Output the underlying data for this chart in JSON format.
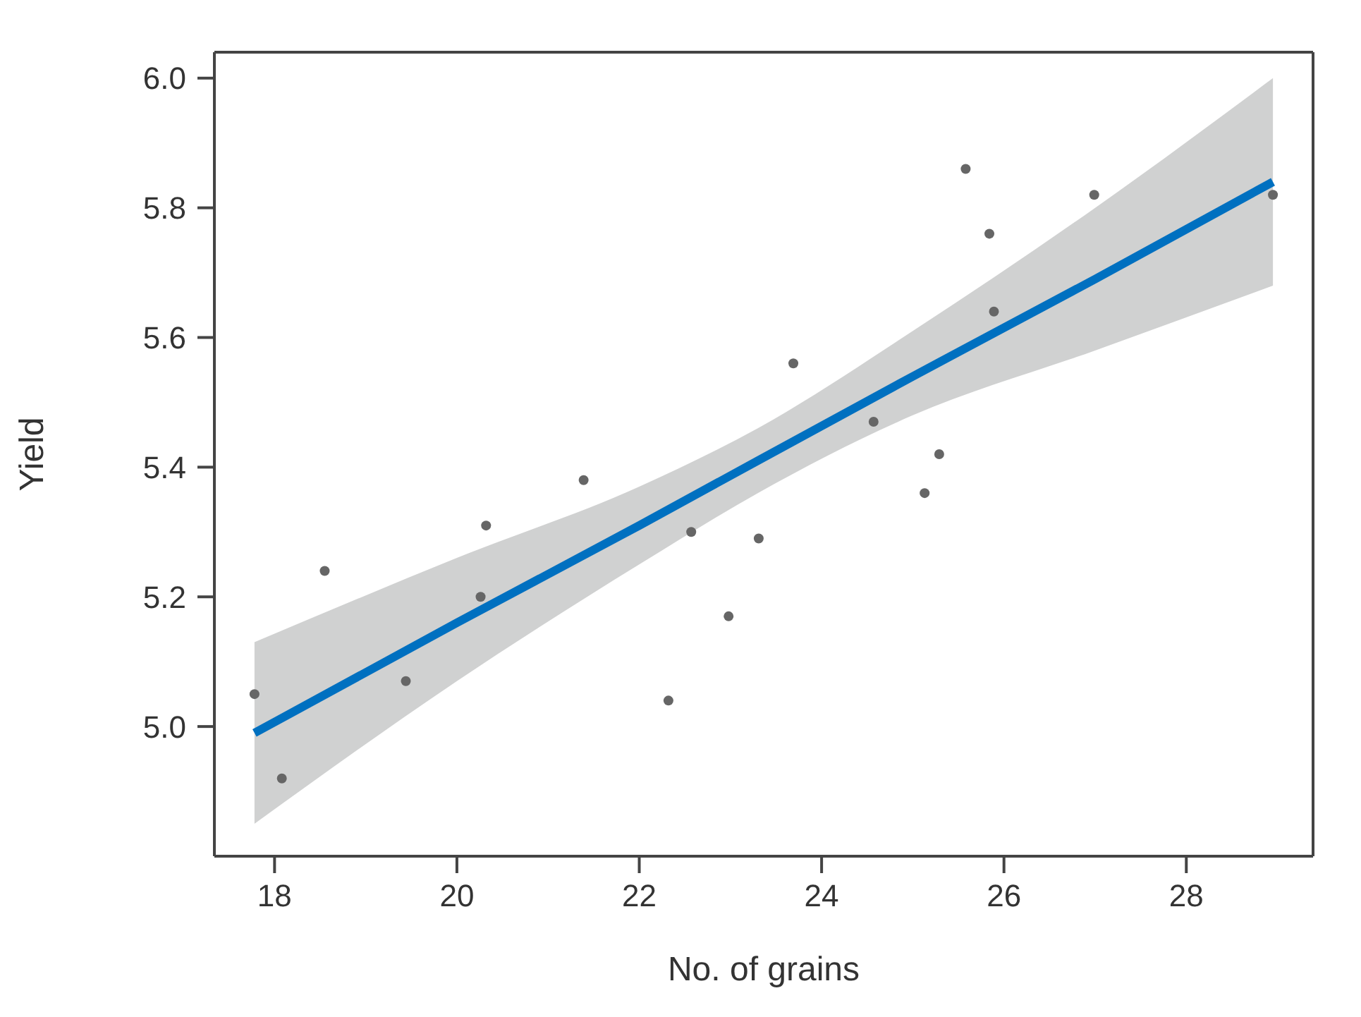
{
  "chart_data": {
    "type": "scatter",
    "xlabel": "No. of grains",
    "ylabel": "Yield",
    "xlim": [
      17.34,
      29.39
    ],
    "ylim": [
      4.8,
      6.04
    ],
    "xticks": [
      18,
      20,
      22,
      24,
      26,
      28
    ],
    "yticks": [
      {
        "value": 5,
        "label": "5.0"
      },
      5.2,
      5.4,
      5.6,
      5.8,
      {
        "value": 6,
        "label": "6.0"
      }
    ],
    "grid": false,
    "legend": false,
    "series": [
      {
        "marker": "circle",
        "color": "#666666",
        "x": [
          17.78,
          18.08,
          18.55,
          19.44,
          20.26,
          20.32,
          21.39,
          22.32,
          22.57,
          22.98,
          23.31,
          23.69,
          24.57,
          25.13,
          25.29,
          25.58,
          25.84,
          25.89,
          26.99,
          28.95
        ],
        "values": [
          5.05,
          4.92,
          5.24,
          5.07,
          5.2,
          5.31,
          5.38,
          5.04,
          5.3,
          5.17,
          5.29,
          5.56,
          5.47,
          5.36,
          5.42,
          5.86,
          5.76,
          5.64,
          5.82,
          5.82
        ]
      },
      {
        "type": "line",
        "color": "#0070c0",
        "x": [
          17.78,
          20,
          22,
          23.3,
          25,
          27,
          28.95
        ],
        "values": [
          4.99,
          5.16,
          5.31,
          5.41,
          5.54,
          5.69,
          5.84
        ],
        "lower": [
          4.85,
          5.07,
          5.25,
          5.36,
          5.48,
          5.58,
          5.68
        ],
        "upper": [
          5.13,
          5.26,
          5.37,
          5.46,
          5.61,
          5.8,
          6.0
        ]
      }
    ]
  }
}
